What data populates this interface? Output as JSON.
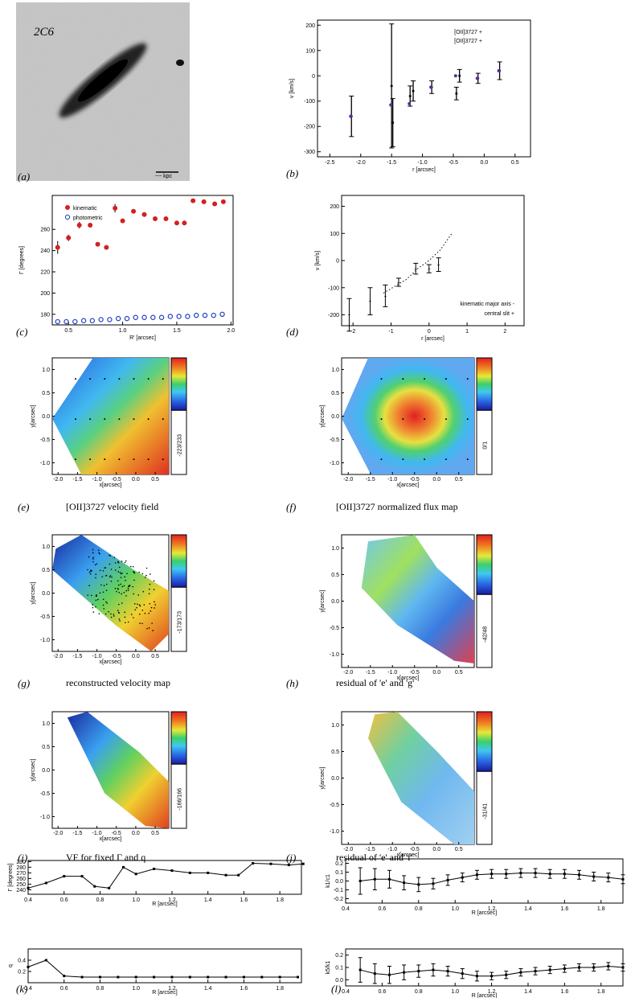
{
  "figure": {
    "galaxy_label": "2C6",
    "scale_bar": "~~ kpc",
    "panel_letters": [
      "(a)",
      "(b)",
      "(c)",
      "(d)",
      "(e)",
      "(f)",
      "(g)",
      "(h)",
      "(i)",
      "(j)",
      "(k)",
      "(l)"
    ],
    "captions": {
      "e": "[OII]3727 velocity field",
      "f": "[OII]3727 normalized flux map",
      "g": "reconstructed velocity map",
      "h": "residual of 'e' and 'g'",
      "i": "VF for fixed Γ and q",
      "j": "residual of 'e' and 'i'"
    },
    "colorbar_labels": {
      "e": "-223/233",
      "f": "0/1",
      "g": "-173/173",
      "h": "-42/48",
      "i": "-166/166",
      "j": "-31/41"
    }
  },
  "chart_data": [
    {
      "id": "b",
      "type": "scatter",
      "xlabel": "r [arcsec]",
      "ylabel": "v [km/s]",
      "xlim": [
        -2.7,
        0.75
      ],
      "ylim": [
        -320,
        220
      ],
      "xticks": [
        "-2.5",
        "-2.0",
        "-1.5",
        "-1.0",
        "-0.5",
        "0.0",
        "0.5"
      ],
      "yticks": [
        "-300",
        "-200",
        "-100",
        "0",
        "100",
        "200"
      ],
      "legend": [
        "[OII]3727 +",
        "[OII]3727 +"
      ],
      "series": [
        {
          "name": "[OII]3727 (black)",
          "color": "#000000",
          "x": [
            -2.15,
            -1.5,
            -1.48,
            -1.2,
            -1.15,
            -0.85,
            -0.45,
            -0.4,
            -0.1,
            0.25
          ],
          "y": [
            -160,
            -40,
            -185,
            -80,
            -60,
            -45,
            -70,
            0,
            -10,
            20
          ],
          "err": [
            80,
            245,
            95,
            40,
            40,
            25,
            25,
            25,
            20,
            35
          ]
        },
        {
          "name": "[OII]3727 (purple)",
          "color": "#5a2aa0",
          "x": [
            -2.15,
            -1.5,
            -1.2,
            -0.85,
            -0.45,
            -0.1,
            0.25
          ],
          "y": [
            -160,
            -115,
            -110,
            -45,
            0,
            -10,
            20
          ]
        }
      ]
    },
    {
      "id": "c",
      "type": "scatter",
      "xlabel": "R' [arcsec]",
      "ylabel": "Γ [degrees]",
      "xlim": [
        0.35,
        2.02
      ],
      "ylim": [
        170,
        292
      ],
      "xticks": [
        "0.5",
        "1.0",
        "1.5",
        "2.0"
      ],
      "yticks": [
        "180",
        "200",
        "220",
        "240",
        "260"
      ],
      "legend": [
        "kinematic",
        "photometric"
      ],
      "series": [
        {
          "name": "kinematic",
          "color": "#d42020",
          "x": [
            0.4,
            0.5,
            0.6,
            0.7,
            0.77,
            0.85,
            0.93,
            1.0,
            1.1,
            1.2,
            1.3,
            1.4,
            1.5,
            1.57,
            1.65,
            1.75,
            1.85,
            1.93
          ],
          "y": [
            243,
            252,
            264,
            264,
            246,
            243,
            280,
            268,
            277,
            274,
            270,
            270,
            266,
            266,
            287,
            286,
            284,
            286
          ],
          "err": [
            6,
            3,
            3,
            2,
            2,
            2,
            4,
            2,
            2,
            2,
            2,
            2,
            2,
            2,
            2,
            2,
            2,
            2
          ]
        },
        {
          "name": "photometric",
          "color": "#2040c0",
          "x": [
            0.4,
            0.48,
            0.56,
            0.64,
            0.72,
            0.8,
            0.88,
            0.96,
            1.04,
            1.12,
            1.2,
            1.28,
            1.36,
            1.44,
            1.52,
            1.6,
            1.68,
            1.76,
            1.84,
            1.92
          ],
          "y": [
            173,
            173,
            173,
            174,
            174,
            175,
            175,
            176,
            176,
            177,
            177,
            177,
            177,
            178,
            178,
            178,
            179,
            179,
            179,
            180
          ]
        }
      ]
    },
    {
      "id": "d",
      "type": "scatter",
      "xlabel": "r [arcsec]",
      "ylabel": "v [km/s]",
      "xlim": [
        -2.3,
        2.5
      ],
      "ylim": [
        -240,
        240
      ],
      "xticks": [
        "-2",
        "-1",
        "0",
        "1",
        "2"
      ],
      "yticks": [
        "-200",
        "-100",
        "0",
        "100",
        "200"
      ],
      "legend": [
        "kinematic major axis -",
        "central slit +"
      ],
      "series": [
        {
          "name": "central slit",
          "color": "#000000",
          "x": [
            -2.1,
            -1.55,
            -1.15,
            -0.8,
            -0.35,
            0,
            0.25
          ],
          "y": [
            -200,
            -150,
            -130,
            -80,
            -30,
            -30,
            -15
          ],
          "err": [
            60,
            50,
            40,
            15,
            20,
            15,
            25
          ]
        },
        {
          "name": "kinematic major axis",
          "color": "#000000",
          "x": [
            -1.2,
            -0.6,
            -0.3,
            0,
            0.3,
            0.6
          ],
          "y": [
            -120,
            -70,
            -30,
            0,
            40,
            100
          ]
        }
      ]
    },
    {
      "id": "k-top",
      "type": "line",
      "xlabel": "R [arcsec]",
      "ylabel": "Γ [degrees]",
      "xlim": [
        0.4,
        1.92
      ],
      "ylim": [
        232,
        292
      ],
      "xticks": [
        "0.4",
        "0.6",
        "0.8",
        "1.0",
        "1.2",
        "1.4",
        "1.6",
        "1.8"
      ],
      "yticks": [
        "240",
        "250",
        "260",
        "270",
        "280",
        "290"
      ],
      "x": [
        0.4,
        0.5,
        0.6,
        0.7,
        0.77,
        0.85,
        0.93,
        1.0,
        1.1,
        1.2,
        1.3,
        1.4,
        1.5,
        1.57,
        1.65,
        1.75,
        1.85,
        1.93
      ],
      "y": [
        243,
        252,
        264,
        264,
        246,
        243,
        280,
        268,
        277,
        274,
        270,
        270,
        266,
        266,
        287,
        286,
        284,
        286
      ]
    },
    {
      "id": "k-bottom",
      "type": "line",
      "xlabel": "R [arcsec]",
      "ylabel": "q",
      "xlim": [
        0.4,
        1.92
      ],
      "ylim": [
        0,
        0.6
      ],
      "xticks": [
        "0.4",
        "0.6",
        "0.8",
        "1.0",
        "1.2",
        "1.4",
        "1.6",
        "1.8"
      ],
      "yticks": [
        "0.2",
        "0.4"
      ],
      "x": [
        0.4,
        0.5,
        0.6,
        0.7,
        0.8,
        0.9,
        1.0,
        1.1,
        1.2,
        1.3,
        1.4,
        1.5,
        1.6,
        1.7,
        1.8,
        1.9
      ],
      "y": [
        0.28,
        0.4,
        0.12,
        0.1,
        0.1,
        0.1,
        0.1,
        0.1,
        0.1,
        0.1,
        0.1,
        0.1,
        0.1,
        0.1,
        0.1,
        0.1
      ]
    },
    {
      "id": "l-top",
      "type": "line",
      "xlabel": "R [arcsec]",
      "ylabel": "k1/c1",
      "xlim": [
        0.4,
        1.92
      ],
      "ylim": [
        -0.25,
        0.25
      ],
      "xticks": [
        "0.4",
        "0.6",
        "0.8",
        "1.0",
        "1.2",
        "1.4",
        "1.6",
        "1.8"
      ],
      "yticks": [
        "-0.2",
        "-0.1",
        "0.0",
        "0.1",
        "0.2"
      ],
      "x": [
        0.48,
        0.56,
        0.64,
        0.72,
        0.8,
        0.88,
        0.96,
        1.04,
        1.12,
        1.2,
        1.28,
        1.36,
        1.44,
        1.52,
        1.6,
        1.68,
        1.76,
        1.84,
        1.92
      ],
      "y": [
        0.0,
        0.02,
        0.02,
        -0.02,
        -0.04,
        -0.03,
        0.01,
        0.04,
        0.07,
        0.08,
        0.08,
        0.09,
        0.09,
        0.08,
        0.08,
        0.07,
        0.05,
        0.04,
        0.02
      ],
      "err": [
        0.15,
        0.12,
        0.1,
        0.08,
        0.08,
        0.06,
        0.06,
        0.05,
        0.05,
        0.05,
        0.05,
        0.05,
        0.05,
        0.05,
        0.05,
        0.05,
        0.05,
        0.05,
        0.05
      ]
    },
    {
      "id": "l-bottom",
      "type": "line",
      "xlabel": "R [arcsec]",
      "ylabel": "k5/k1",
      "xlim": [
        0.4,
        1.92
      ],
      "ylim": [
        -0.05,
        0.25
      ],
      "xticks": [
        "0.4",
        "0.6",
        "0.8",
        "1.0",
        "1.2",
        "1.4",
        "1.6",
        "1.8"
      ],
      "yticks": [
        "0.0",
        "0.1",
        "0.2"
      ],
      "x": [
        0.48,
        0.56,
        0.64,
        0.72,
        0.8,
        0.88,
        0.96,
        1.04,
        1.12,
        1.2,
        1.28,
        1.36,
        1.44,
        1.52,
        1.6,
        1.68,
        1.76,
        1.84,
        1.92
      ],
      "y": [
        0.08,
        0.05,
        0.04,
        0.06,
        0.07,
        0.08,
        0.07,
        0.05,
        0.03,
        0.03,
        0.04,
        0.06,
        0.07,
        0.08,
        0.09,
        0.1,
        0.1,
        0.11,
        0.1
      ],
      "err": [
        0.1,
        0.08,
        0.07,
        0.06,
        0.05,
        0.05,
        0.04,
        0.04,
        0.04,
        0.03,
        0.03,
        0.03,
        0.03,
        0.03,
        0.03,
        0.03,
        0.03,
        0.03,
        0.03
      ]
    }
  ],
  "maps": {
    "e": {
      "xlabel": "x[arcsec]",
      "ylabel": "y[arcsec]",
      "xticks": [
        "-2.0",
        "-1.5",
        "-1.0",
        "-0.5",
        "0.0",
        "0.5"
      ],
      "yticks": [
        "1.0",
        "0.5",
        "0.0",
        "-0.5",
        "-1.0"
      ]
    },
    "f": {
      "xlabel": "x[arcsec]",
      "ylabel": "y[arcsec]",
      "xticks": [
        "-2.0",
        "-1.5",
        "-1.0",
        "-0.5",
        "0.0",
        "0.5"
      ],
      "yticks": [
        "1.0",
        "0.5",
        "0.0",
        "-0.5",
        "-1.0"
      ]
    },
    "g": {
      "xlabel": "x[arcsec]",
      "ylabel": "y[arcsec]",
      "xticks": [
        "-2.0",
        "-1.5",
        "-1.0",
        "-0.5",
        "0.0",
        "0.5"
      ],
      "yticks": [
        "1.0",
        "0.5",
        "0.0",
        "-0.5",
        "-1.0"
      ]
    },
    "h": {
      "xlabel": "x[arcsec]",
      "ylabel": "y[arcsec]",
      "xticks": [
        "-2.0",
        "-1.5",
        "-1.0",
        "-0.5",
        "0.0",
        "0.5"
      ],
      "yticks": [
        "1.0",
        "0.5",
        "0.0",
        "-0.5",
        "-1.0"
      ]
    },
    "i": {
      "xlabel": "x[arcsec]",
      "ylabel": "y[arcsec]",
      "xticks": [
        "-2.0",
        "-1.5",
        "-1.0",
        "-0.5",
        "0.0",
        "0.5"
      ],
      "yticks": [
        "1.0",
        "0.5",
        "0.0",
        "-0.5",
        "-1.0"
      ]
    },
    "j": {
      "xlabel": "x[arcsec]",
      "ylabel": "y[arcsec]",
      "xticks": [
        "-2.0",
        "-1.5",
        "-1.0",
        "-0.5",
        "0.0",
        "0.5"
      ],
      "yticks": [
        "1.0",
        "0.5",
        "0.0",
        "-0.5",
        "-1.0"
      ]
    }
  }
}
